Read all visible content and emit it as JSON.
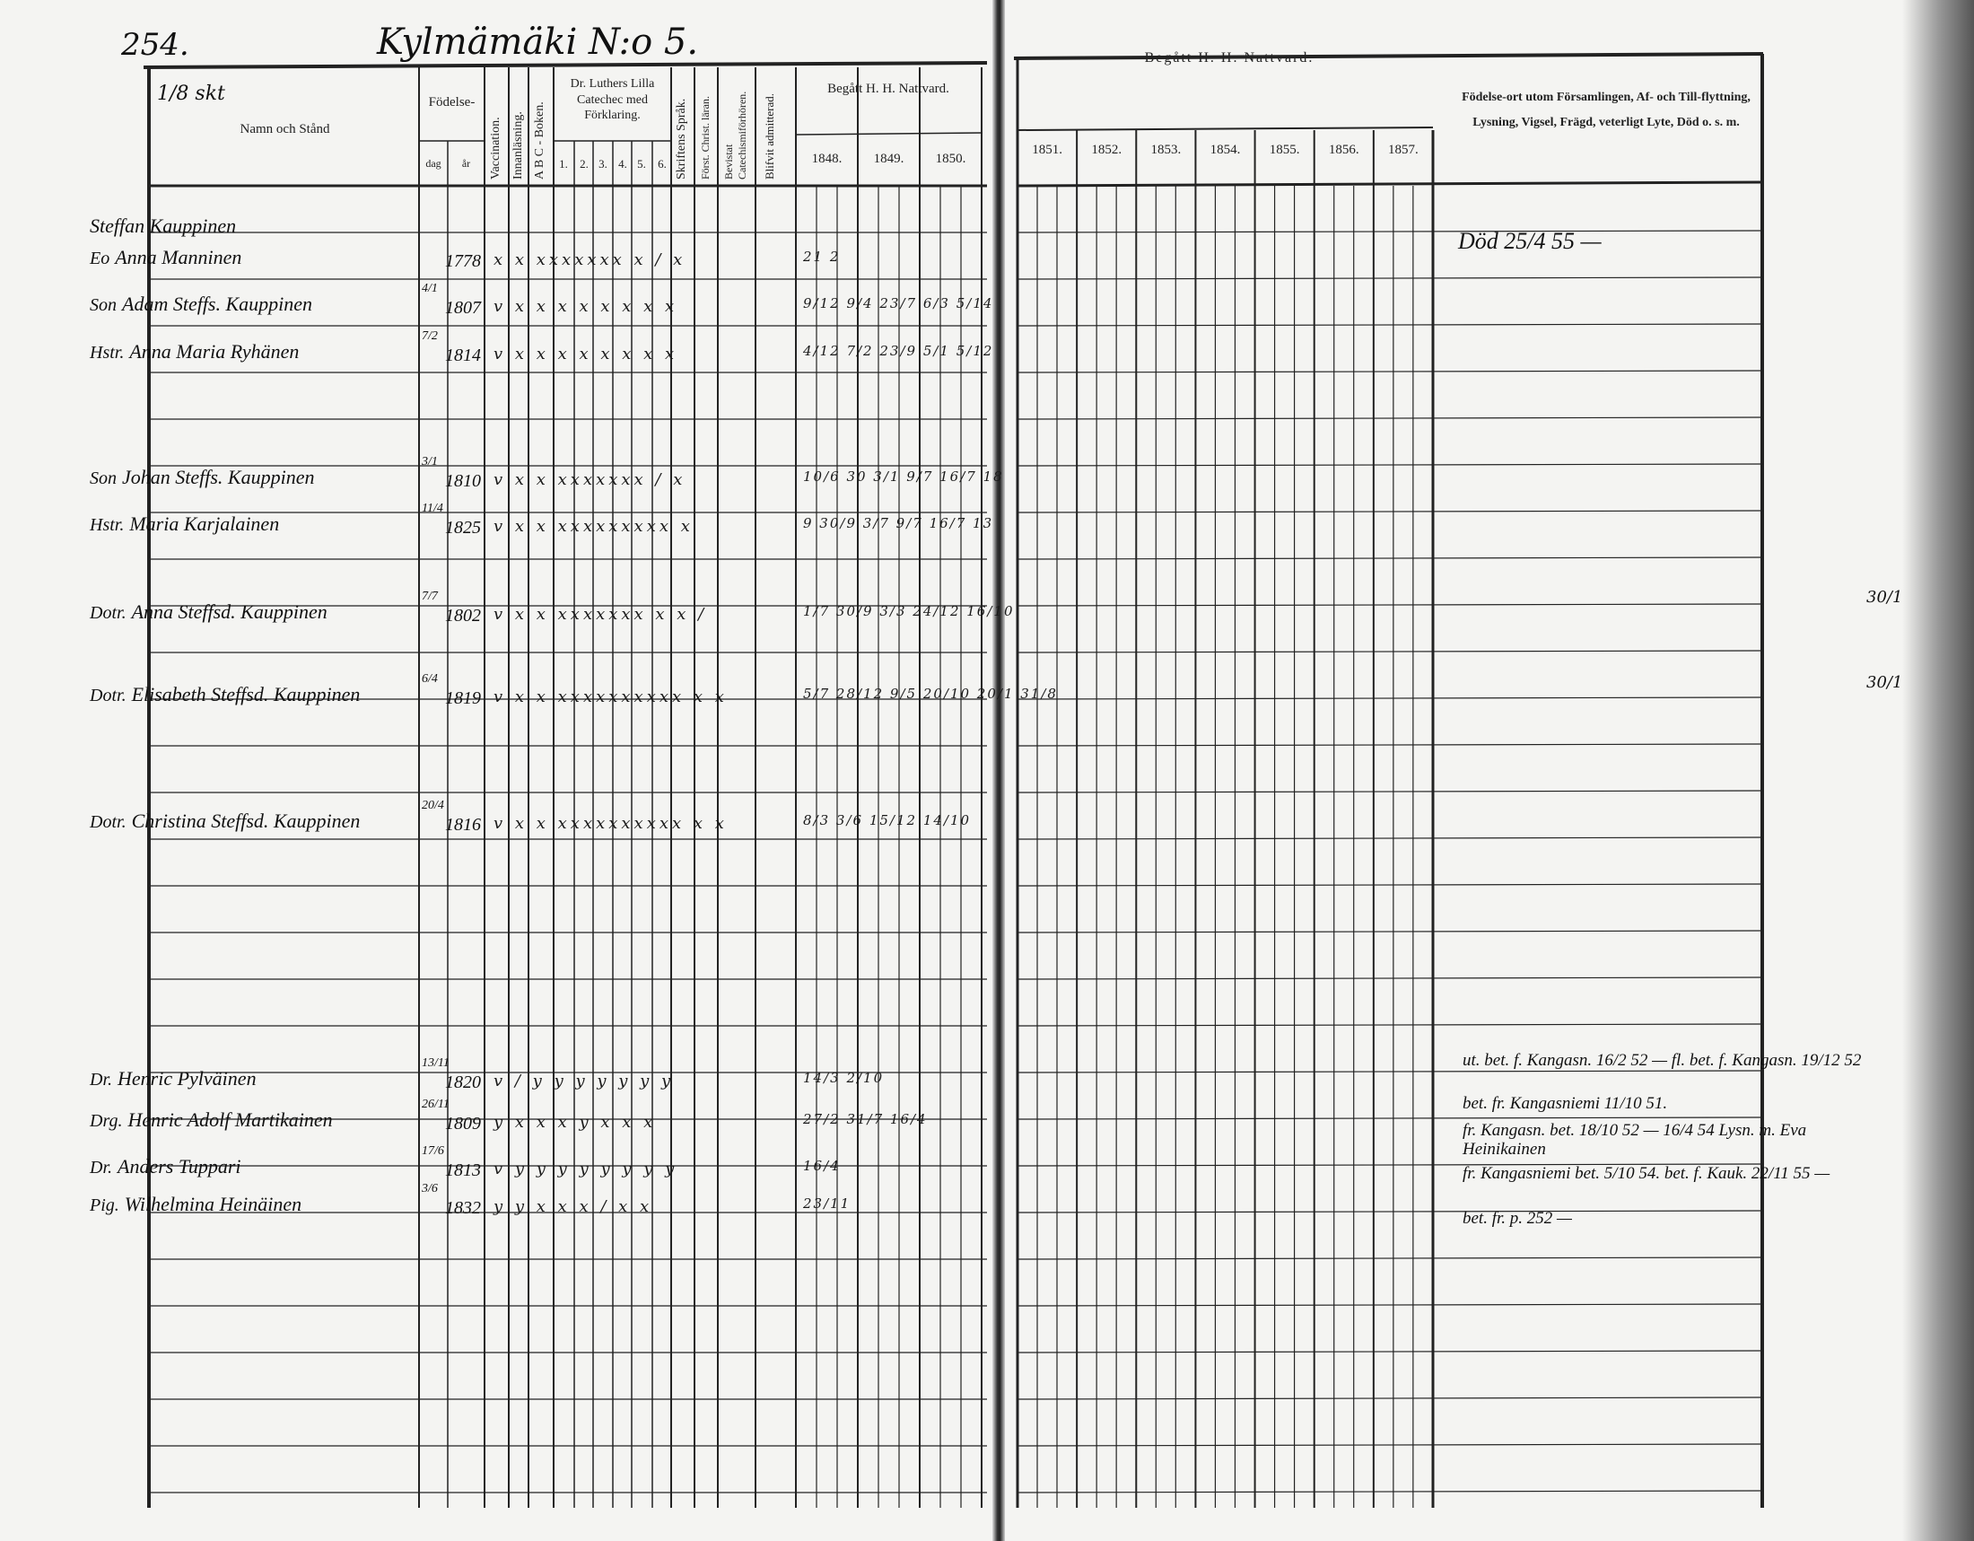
{
  "header": {
    "page_number": "254.",
    "farm_title": "Kylmämäki N:o 5.",
    "margin_note": "1/8 skt",
    "columns": {
      "name": "Namn och Stånd",
      "birth": "Födelse-",
      "birth_day": "dag",
      "birth_year": "år",
      "vaccination": "Vaccination.",
      "innanlasning": "Innanläsning.",
      "abc": "A B C - Boken.",
      "luther": "Dr. Luthers Lilla Catecheс med Förklaring.",
      "luther_parts": [
        "1.",
        "2.",
        "3.",
        "4.",
        "5.",
        "6."
      ],
      "skriftens": "Skriftens Språk.",
      "forst": "Först. Christ. läran.",
      "bevistat": "Bevistat Catechismiförhören.",
      "blifvit": "Blifvit admitterad.",
      "begatt_left": "Begått H. H. Nattvard.",
      "years_left": [
        "1848.",
        "1849.",
        "1850."
      ],
      "begatt_right": "Begått H. H. Nattvard.",
      "years_right": [
        "1851.",
        "1852.",
        "1853.",
        "1854.",
        "1855.",
        "1856.",
        "1857."
      ],
      "remarks": "Födelse-ort utom Församlingen, Af- och Till-flyttning, Lysning, Vigsel, Frägd, veterligt Lyte, Död o. s. m."
    }
  },
  "rows": [
    {
      "prefix": "",
      "name": "Steffan Kauppinen",
      "day": "",
      "year": "",
      "marks": "",
      "communion": ""
    },
    {
      "prefix": "Eo",
      "name": "Anna Manninen",
      "day": "",
      "year": "1778",
      "marks": "x x xxxxxxx x / x",
      "communion": "21 2"
    },
    {
      "prefix": "Son",
      "name": "Adam Steffs. Kauppinen",
      "day": "4/1",
      "year": "1807",
      "marks": "v x x x x x x x x",
      "communion": "9/12  9/4  23/7  6/3  5/14"
    },
    {
      "prefix": "Hstr.",
      "name": "Anna Maria Ryhänen",
      "day": "7/2",
      "year": "1814",
      "marks": "v x x x x x x x x",
      "communion": "4/12  7/2  23/9  5/1  5/12"
    },
    {
      "prefix": "Son",
      "name": "Johan Steffs. Kauppinen",
      "day": "3/1",
      "year": "1810",
      "marks": "v x x xxxxxxx / x",
      "communion": "10/6  30  3/1  9/7  16/7  18"
    },
    {
      "prefix": "Hstr.",
      "name": "Maria Karjalainen",
      "day": "11/4",
      "year": "1825",
      "marks": "v x x xxxxxxxxx x",
      "communion": "9  30/9  3/7  9/7  16/7  13"
    },
    {
      "prefix": "Dotr.",
      "name": "Anna Steffsd. Kauppinen",
      "day": "7/7",
      "year": "1802",
      "marks": "v x x xxxxxxx x x /",
      "communion": "1/7  30/9  3/3  24/12  16/10"
    },
    {
      "prefix": "Dotr.",
      "name": "Elisabeth Steffsd. Kauppinen",
      "day": "6/4",
      "year": "1819",
      "marks": "v x x xxxxxxxxxx x x",
      "communion": "5/7  28/12  9/5  20/10  20/1  31/8"
    },
    {
      "prefix": "Dotr.",
      "name": "Christina Steffsd. Kauppinen",
      "day": "20/4",
      "year": "1816",
      "marks": "v x x xxxxxxxxxx x x",
      "communion": "8/3  3/6  15/12  14/10"
    },
    {
      "prefix": "Dr.",
      "name": "Henric Pylväinen",
      "day": "13/11",
      "year": "1820",
      "marks": "v / y y y y y y y",
      "communion": "14/3  2/10"
    },
    {
      "prefix": "Drg.",
      "name": "Henric Adolf Martikainen",
      "day": "26/11",
      "year": "1809",
      "marks": "y x x x y x x x",
      "communion": "27/2  31/7  16/4"
    },
    {
      "prefix": "Dr.",
      "name": "Anders Tuppari",
      "day": "17/6",
      "year": "1813",
      "marks": "v y y y y y y y y",
      "communion": "16/4"
    },
    {
      "prefix": "Pig.",
      "name": "Wilhelmina Heinäinen",
      "day": "3/6",
      "year": "1832",
      "marks": "y y x x x / x x",
      "communion": "23/11"
    }
  ],
  "remarks": [
    "Död 25/4 55 —",
    "ut. bet. f. Kangasn. 16/2 52 — fl. bet. f. Kangasn. 19/12 52",
    "bet. fr. Kangasniemi 11/10 51.",
    "fr. Kangasn. bet. 18/10 52 — 16/4 54 Lysn. m. Eva Heinikainen",
    "fr. Kangasniemi bet. 5/10 54. bet. f. Kauk. 22/11 55 —",
    "bet. fr. p. 252 —"
  ],
  "far_margin": [
    "30/1",
    "30/1"
  ]
}
